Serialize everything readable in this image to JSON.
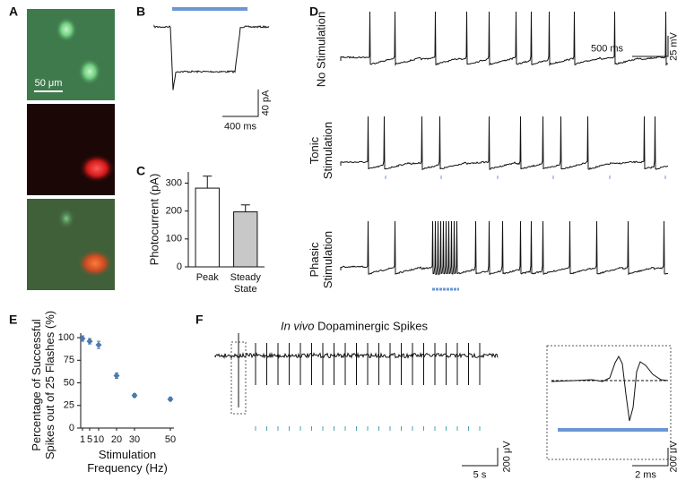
{
  "panel_labels": [
    "A",
    "B",
    "C",
    "D",
    "E",
    "F"
  ],
  "panel_a": {
    "scale_label": "50 μm"
  },
  "panel_b": {
    "current_scale": "40 pA",
    "time_scale": "400 ms"
  },
  "panel_d": {
    "rows": [
      "No Stimulation",
      "Tonic Stimulation",
      "Phasic Stimulation"
    ],
    "voltage_scale": "25 mV",
    "time_scale": "500 ms"
  },
  "panel_f": {
    "title_italic": "In vivo",
    "title": "Dopaminergic Spikes",
    "voltage_scale": "200 μV",
    "time_scale": "5 s",
    "inset_voltage_scale": "200 μV",
    "inset_time_scale": "2 ms"
  },
  "chart_data": [
    {
      "type": "bar",
      "ylabel": "Photocurrent (pA)",
      "categories": [
        "Peak",
        "Steady State"
      ],
      "values": [
        282,
        197
      ],
      "errors": [
        43,
        25
      ],
      "colors": [
        "#ffffff",
        "#c8c8c8"
      ],
      "ylim": [
        0,
        340
      ],
      "yticks": [
        0,
        100,
        200,
        300
      ]
    },
    {
      "type": "scatter",
      "ylabel": "Percentage of Successful Spikes out of 25 Flashes (%)",
      "xlabel": "Stimulation Frequency (Hz)",
      "x": [
        1,
        5,
        10,
        20,
        30,
        50
      ],
      "series": [
        {
          "color": "#4a7ab0",
          "values": [
            99,
            96,
            92,
            58,
            36,
            32
          ],
          "errors": [
            3,
            3,
            4,
            3,
            2,
            2
          ]
        }
      ],
      "xlim": [
        0,
        52
      ],
      "ylim": [
        0,
        105
      ],
      "xticks": [
        1,
        5,
        10,
        20,
        30,
        50
      ],
      "yticks": [
        0,
        25,
        50,
        75,
        100
      ]
    }
  ]
}
